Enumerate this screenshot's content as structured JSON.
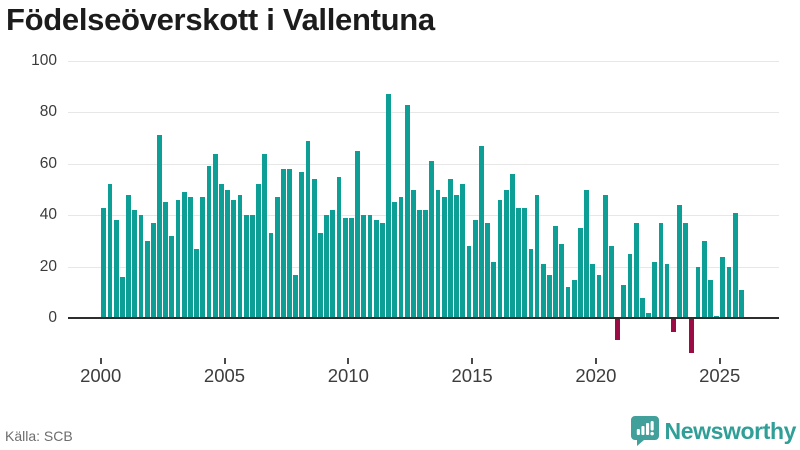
{
  "header": {
    "title": "Födelseöverskott i Vallentuna"
  },
  "footer": {
    "source": "Källa: SCB",
    "brand": {
      "name": "Newsworthy",
      "icon": "newsworthy-chart-bubble-icon"
    }
  },
  "colors": {
    "positive_bar": "#0d9e96",
    "negative_bar": "#9b0c44",
    "axis_line": "#2d2d2d",
    "gridline": "#e7e7e7",
    "tick_mark": "#4a4a4a",
    "title_text": "#1c1c1c",
    "label_text": "#3d3d3d",
    "source_text": "#6d6d6d",
    "brand_teal": "#2f9f97",
    "badge_teal": "#42a09a"
  },
  "chart_data": {
    "type": "bar",
    "title": "Födelseöverskott i Vallentuna",
    "source": "Källa: SCB",
    "xlabel": "",
    "ylabel": "",
    "frequency": "quarterly",
    "x_start": "2000-Q1",
    "x_end": "2025-Q4",
    "grid": true,
    "legend": "none",
    "ylim": [
      -15,
      100
    ],
    "y_ticks": [
      0,
      20,
      40,
      60,
      80,
      100
    ],
    "x_tick_labels": [
      "2000",
      "2005",
      "2010",
      "2015",
      "2020",
      "2025"
    ],
    "series": [
      {
        "name": "Födelseöverskott",
        "start_year": 2000,
        "start_quarter": 1,
        "values": [
          43,
          52,
          38,
          16,
          48,
          42,
          40,
          30,
          37,
          71,
          45,
          32,
          46,
          49,
          47,
          27,
          47,
          59,
          64,
          52,
          50,
          46,
          48,
          40,
          40,
          52,
          64,
          33,
          47,
          58,
          58,
          17,
          57,
          69,
          54,
          33,
          40,
          42,
          55,
          39,
          39,
          65,
          40,
          40,
          38,
          37,
          87,
          45,
          47,
          83,
          50,
          42,
          42,
          61,
          50,
          47,
          54,
          48,
          52,
          28,
          38,
          67,
          37,
          22,
          46,
          50,
          56,
          43,
          43,
          27,
          48,
          21,
          17,
          36,
          29,
          12,
          15,
          35,
          50,
          21,
          17,
          48,
          28,
          -8,
          13,
          25,
          37,
          8,
          2,
          22,
          37,
          21,
          -5,
          44,
          37,
          -13,
          20,
          30,
          15,
          1,
          24,
          20,
          41,
          11
        ]
      }
    ]
  }
}
